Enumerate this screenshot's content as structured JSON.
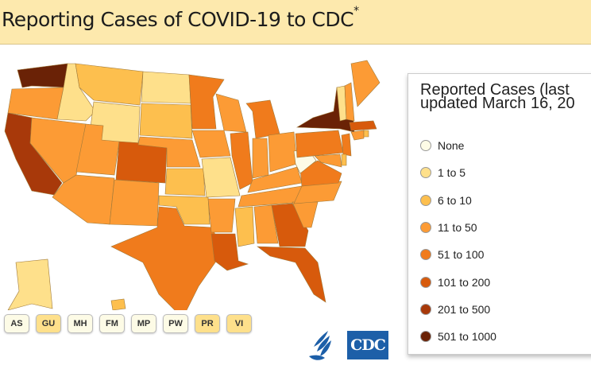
{
  "header": {
    "title": "Reporting Cases of COVID-19 to CDC",
    "title_mark": "*"
  },
  "legend": {
    "title_line1": "Reported Cases (last",
    "title_line2": "updated March 16, 20",
    "items": [
      {
        "label": "None",
        "color": "#fdfbe6"
      },
      {
        "label": "1 to 5",
        "color": "#fee08b"
      },
      {
        "label": "6 to 10",
        "color": "#fdbf4e"
      },
      {
        "label": "11 to 50",
        "color": "#fc9b35"
      },
      {
        "label": "51 to 100",
        "color": "#f07b1c"
      },
      {
        "label": "101 to 200",
        "color": "#d75a0c"
      },
      {
        "label": "201 to 500",
        "color": "#a8390a"
      },
      {
        "label": "501 to 1000",
        "color": "#6a2206"
      }
    ]
  },
  "territories": [
    {
      "code": "AS",
      "color": "#fdfbe6"
    },
    {
      "code": "GU",
      "color": "#fee08b"
    },
    {
      "code": "MH",
      "color": "#fdfbe6"
    },
    {
      "code": "FM",
      "color": "#fdfbe6"
    },
    {
      "code": "MP",
      "color": "#fdfbe6"
    },
    {
      "code": "PW",
      "color": "#fdfbe6"
    },
    {
      "code": "PR",
      "color": "#fee08b"
    },
    {
      "code": "VI",
      "color": "#fee08b"
    }
  ],
  "logos": {
    "cdc": "CDC"
  },
  "map": {
    "states": [
      {
        "id": "WA",
        "category": "501 to 1000"
      },
      {
        "id": "OR",
        "category": "11 to 50"
      },
      {
        "id": "CA",
        "category": "201 to 500"
      },
      {
        "id": "ID",
        "category": "1 to 5"
      },
      {
        "id": "NV",
        "category": "11 to 50"
      },
      {
        "id": "MT",
        "category": "6 to 10"
      },
      {
        "id": "WY",
        "category": "1 to 5"
      },
      {
        "id": "UT",
        "category": "11 to 50"
      },
      {
        "id": "AZ",
        "category": "11 to 50"
      },
      {
        "id": "CO",
        "category": "101 to 200"
      },
      {
        "id": "NM",
        "category": "11 to 50"
      },
      {
        "id": "ND",
        "category": "1 to 5"
      },
      {
        "id": "SD",
        "category": "6 to 10"
      },
      {
        "id": "NE",
        "category": "11 to 50"
      },
      {
        "id": "KS",
        "category": "6 to 10"
      },
      {
        "id": "OK",
        "category": "6 to 10"
      },
      {
        "id": "TX",
        "category": "51 to 100"
      },
      {
        "id": "MN",
        "category": "51 to 100"
      },
      {
        "id": "IA",
        "category": "11 to 50"
      },
      {
        "id": "MO",
        "category": "1 to 5"
      },
      {
        "id": "AR",
        "category": "11 to 50"
      },
      {
        "id": "LA",
        "category": "101 to 200"
      },
      {
        "id": "WI",
        "category": "11 to 50"
      },
      {
        "id": "IL",
        "category": "51 to 100"
      },
      {
        "id": "MI",
        "category": "51 to 100"
      },
      {
        "id": "IN",
        "category": "11 to 50"
      },
      {
        "id": "OH",
        "category": "11 to 50"
      },
      {
        "id": "KY",
        "category": "11 to 50"
      },
      {
        "id": "TN",
        "category": "11 to 50"
      },
      {
        "id": "MS",
        "category": "6 to 10"
      },
      {
        "id": "AL",
        "category": "11 to 50"
      },
      {
        "id": "GA",
        "category": "101 to 200"
      },
      {
        "id": "FL",
        "category": "101 to 200"
      },
      {
        "id": "SC",
        "category": "11 to 50"
      },
      {
        "id": "NC",
        "category": "11 to 50"
      },
      {
        "id": "VA",
        "category": "51 to 100"
      },
      {
        "id": "WV",
        "category": "None"
      },
      {
        "id": "PA",
        "category": "51 to 100"
      },
      {
        "id": "NY",
        "category": "501 to 1000"
      },
      {
        "id": "NJ",
        "category": "51 to 100"
      },
      {
        "id": "MD",
        "category": "11 to 50"
      },
      {
        "id": "DE",
        "category": "6 to 10"
      },
      {
        "id": "DC",
        "category": "6 to 10"
      },
      {
        "id": "CT",
        "category": "11 to 50"
      },
      {
        "id": "RI",
        "category": "6 to 10"
      },
      {
        "id": "MA",
        "category": "101 to 200"
      },
      {
        "id": "VT",
        "category": "1 to 5"
      },
      {
        "id": "NH",
        "category": "11 to 50"
      },
      {
        "id": "ME",
        "category": "11 to 50"
      },
      {
        "id": "AK",
        "category": "1 to 5"
      },
      {
        "id": "HI",
        "category": "6 to 10"
      }
    ]
  }
}
